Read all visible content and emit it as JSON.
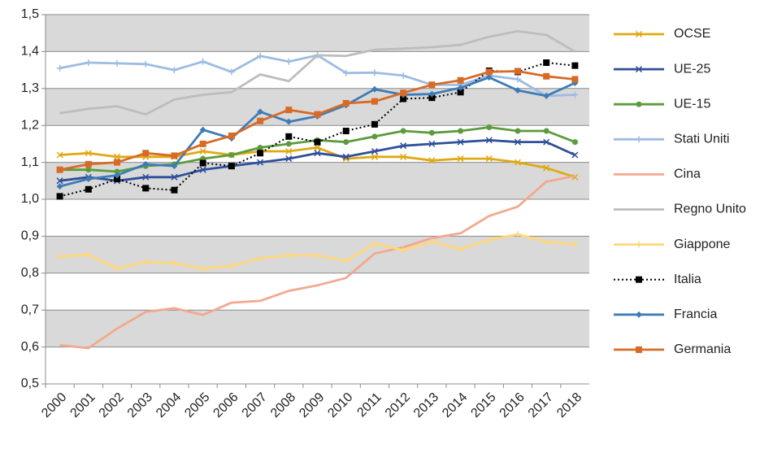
{
  "chart_data": {
    "type": "line",
    "categories": [
      "2000",
      "2001",
      "2002",
      "2003",
      "2004",
      "2005",
      "2006",
      "2007",
      "2008",
      "2009",
      "2010",
      "2011",
      "2012",
      "2013",
      "2014",
      "2015",
      "2016",
      "2017",
      "2018"
    ],
    "ylim": [
      0.5,
      1.5
    ],
    "yticks": [
      {
        "value": 0.5,
        "label": "0,5"
      },
      {
        "value": 0.6,
        "label": "0,6"
      },
      {
        "value": 0.7,
        "label": "0,7"
      },
      {
        "value": 0.8,
        "label": "0,8"
      },
      {
        "value": 0.9,
        "label": "0,9"
      },
      {
        "value": 1.0,
        "label": "1,0"
      },
      {
        "value": 1.1,
        "label": "1,1"
      },
      {
        "value": 1.2,
        "label": "1,2"
      },
      {
        "value": 1.3,
        "label": "1,3"
      },
      {
        "value": 1.4,
        "label": "1,4"
      },
      {
        "value": 1.5,
        "label": "1,5"
      }
    ],
    "grid": "bands",
    "legend": "right",
    "series": [
      {
        "name": "OCSE",
        "color": "#e0a913",
        "marker": "x",
        "values": [
          1.12,
          1.125,
          1.115,
          1.115,
          1.115,
          1.13,
          1.12,
          1.13,
          1.13,
          1.14,
          1.11,
          1.115,
          1.115,
          1.105,
          1.11,
          1.11,
          1.1,
          1.085,
          1.06
        ]
      },
      {
        "name": "UE-25",
        "color": "#2e4f9a",
        "marker": "x",
        "values": [
          1.05,
          1.06,
          1.05,
          1.06,
          1.06,
          1.08,
          1.09,
          1.1,
          1.11,
          1.125,
          1.115,
          1.13,
          1.145,
          1.15,
          1.155,
          1.16,
          1.155,
          1.155,
          1.12
        ]
      },
      {
        "name": "UE-15",
        "color": "#5c9b3c",
        "marker": "circle",
        "values": [
          1.08,
          1.08,
          1.075,
          1.09,
          1.095,
          1.11,
          1.12,
          1.14,
          1.15,
          1.16,
          1.155,
          1.17,
          1.185,
          1.18,
          1.185,
          1.195,
          1.185,
          1.185,
          1.155
        ]
      },
      {
        "name": "Stati Uniti",
        "color": "#9dbce3",
        "marker": "plus",
        "values": [
          1.355,
          1.37,
          1.368,
          1.366,
          1.35,
          1.373,
          1.345,
          1.388,
          1.373,
          1.39,
          1.342,
          1.343,
          1.335,
          1.31,
          1.31,
          1.335,
          1.325,
          1.28,
          1.283
        ]
      },
      {
        "name": "Cina",
        "color": "#f2a98e",
        "marker": "none",
        "values": [
          0.605,
          0.597,
          0.65,
          0.695,
          0.705,
          0.687,
          0.72,
          0.725,
          0.752,
          0.767,
          0.787,
          0.853,
          0.87,
          0.895,
          0.908,
          0.955,
          0.98,
          1.048,
          1.063
        ]
      },
      {
        "name": "Regno Unito",
        "color": "#bdbdbd",
        "marker": "none",
        "values": [
          1.233,
          1.245,
          1.252,
          1.23,
          1.27,
          1.283,
          1.29,
          1.338,
          1.32,
          1.39,
          1.388,
          1.405,
          1.408,
          1.412,
          1.418,
          1.44,
          1.455,
          1.445,
          1.4
        ]
      },
      {
        "name": "Giappone",
        "color": "#ffd77a",
        "marker": "plus",
        "values": [
          0.845,
          0.85,
          0.813,
          0.83,
          0.827,
          0.812,
          0.82,
          0.84,
          0.848,
          0.848,
          0.833,
          0.88,
          0.862,
          0.885,
          0.865,
          0.89,
          0.905,
          0.885,
          0.878
        ]
      },
      {
        "name": "Italia",
        "color": "#000000",
        "marker": "square",
        "dash": "dotted",
        "values": [
          1.008,
          1.027,
          1.055,
          1.03,
          1.025,
          1.098,
          1.09,
          1.125,
          1.17,
          1.155,
          1.185,
          1.203,
          1.272,
          1.275,
          1.29,
          1.348,
          1.345,
          1.37,
          1.362
        ]
      },
      {
        "name": "Francia",
        "color": "#3e7cb6",
        "marker": "diamond",
        "values": [
          1.035,
          1.055,
          1.065,
          1.095,
          1.09,
          1.188,
          1.165,
          1.237,
          1.21,
          1.225,
          1.255,
          1.298,
          1.283,
          1.285,
          1.302,
          1.33,
          1.295,
          1.28,
          1.315
        ]
      },
      {
        "name": "Germania",
        "color": "#d86a26",
        "marker": "square",
        "values": [
          1.08,
          1.095,
          1.1,
          1.125,
          1.118,
          1.15,
          1.172,
          1.212,
          1.242,
          1.23,
          1.26,
          1.265,
          1.288,
          1.31,
          1.322,
          1.345,
          1.347,
          1.333,
          1.325
        ]
      }
    ]
  }
}
